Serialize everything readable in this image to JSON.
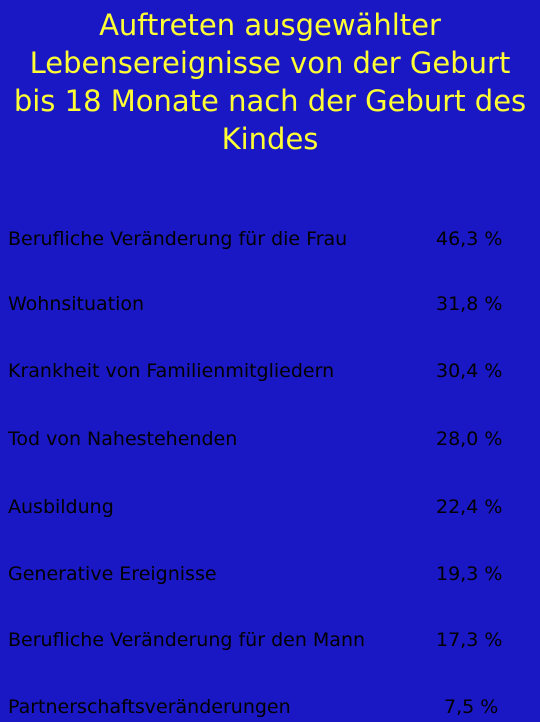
{
  "title": "Auftreten ausgewählter\nLebensereignisse von der Geburt\nbis 18 Monate nach der Geburt des\nKindes",
  "colors": {
    "background": "#1a18c4",
    "title": "#ffff33",
    "text": "#000000"
  },
  "items": [
    {
      "label": "Berufliche Veränderung für die Frau",
      "value": "46,3 %"
    },
    {
      "label": "Wohnsituation",
      "value": "31,8 %"
    },
    {
      "label": "Krankheit von Familienmitgliedern",
      "value": "30,4 %"
    },
    {
      "label": "Tod von Nahestehenden",
      "value": "28,0 %"
    },
    {
      "label": "Ausbildung",
      "value": "22,4 %"
    },
    {
      "label": "Generative Ereignisse",
      "value": "19,3 %"
    },
    {
      "label": "Berufliche Veränderung für den Mann",
      "value": "17,3 %"
    },
    {
      "label": "Partnerschaftsveränderungen",
      "value": "7,5 %"
    }
  ]
}
